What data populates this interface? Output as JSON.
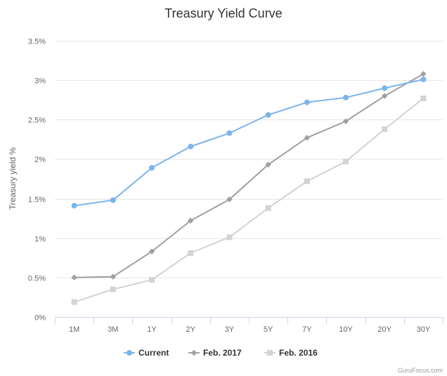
{
  "chart_data": {
    "type": "line",
    "title": "Treasury Yield Curve",
    "ylabel": "Treasury yield %",
    "xlabel": "",
    "categories": [
      "1M",
      "3M",
      "1Y",
      "2Y",
      "3Y",
      "5Y",
      "7Y",
      "10Y",
      "20Y",
      "30Y"
    ],
    "ylim": [
      0,
      3.5
    ],
    "yticks": [
      0,
      0.5,
      1,
      1.5,
      2,
      2.5,
      3,
      3.5
    ],
    "ytick_labels": [
      "0%",
      "0.5%",
      "1%",
      "1.5%",
      "2%",
      "2.5%",
      "3%",
      "3.5%"
    ],
    "grid": true,
    "legend": "bottom",
    "series": [
      {
        "name": "Current",
        "color": "#7cb5ec",
        "marker": "circle",
        "values": [
          1.41,
          1.48,
          1.89,
          2.16,
          2.33,
          2.56,
          2.72,
          2.78,
          2.9,
          3.01
        ]
      },
      {
        "name": "Feb. 2017",
        "color": "#a0a0a0",
        "marker": "diamond",
        "values": [
          0.5,
          0.51,
          0.83,
          1.22,
          1.49,
          1.93,
          2.27,
          2.48,
          2.8,
          3.08
        ]
      },
      {
        "name": "Feb. 2016",
        "color": "#d3d3d3",
        "marker": "square",
        "values": [
          0.19,
          0.35,
          0.47,
          0.81,
          1.01,
          1.38,
          1.72,
          1.97,
          2.38,
          2.77
        ]
      }
    ],
    "credit": "GuruFocus.com"
  }
}
